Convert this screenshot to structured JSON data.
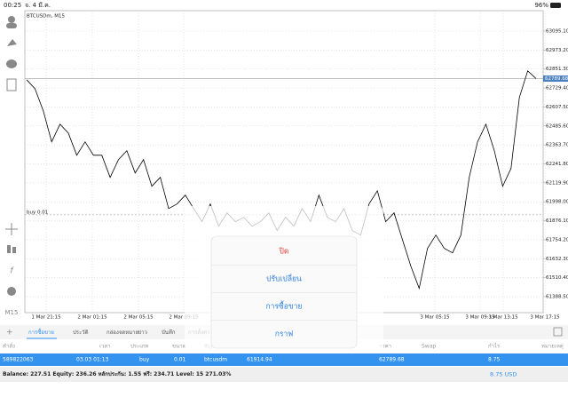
{
  "status_bar": {
    "time": "00:25",
    "date": "จ. 4 มี.ค.",
    "battery": "96%"
  },
  "chart_data": {
    "type": "line",
    "title": "BTCUSDm, M15",
    "timeframe": "M15",
    "current_price": 62789.68,
    "buy_label": "buy 0.01",
    "ylim": [
      61286,
      63226
    ],
    "yticks": [
      {
        "value": 63095.1,
        "label": "63095.10"
      },
      {
        "value": 62973.2,
        "label": "62973.20"
      },
      {
        "value": 62851.3,
        "label": "62851.30"
      },
      {
        "value": 62729.4,
        "label": "62729.40"
      },
      {
        "value": 62607.5,
        "label": "62607.50"
      },
      {
        "value": 62485.6,
        "label": "62485.60"
      },
      {
        "value": 62363.7,
        "label": "62363.70"
      },
      {
        "value": 62241.8,
        "label": "62241.80"
      },
      {
        "value": 62119.9,
        "label": "62119.90"
      },
      {
        "value": 61998,
        "label": "61998.00"
      },
      {
        "value": 61876.1,
        "label": "61876.10"
      },
      {
        "value": 61754.2,
        "label": "61754.20"
      },
      {
        "value": 61632.3,
        "label": "61632.30"
      },
      {
        "value": 61510.4,
        "label": "61510.40"
      },
      {
        "value": 61388.5,
        "label": "61388.50"
      }
    ],
    "xticks": [
      "1 Mar 21:15",
      "2 Mar 01:15",
      "2 Mar 05:15",
      "2 Mar 09:15",
      "3 Mar 05:15",
      "3 Mar 09:15",
      "3 Mar 13:15",
      "3 Mar 17:15"
    ],
    "color": "#000000",
    "grid": true,
    "values": [
      62782,
      62725,
      62582,
      62383,
      62497,
      62440,
      62297,
      62383,
      62297,
      62297,
      62155,
      62269,
      62326,
      62183,
      62269,
      62098,
      62155,
      61955,
      61984,
      62041,
      61955,
      61870,
      61984,
      61841,
      61927,
      61870,
      61898,
      61841,
      61870,
      61927,
      61813,
      61898,
      61841,
      61955,
      61870,
      62041,
      61898,
      61870,
      61955,
      61813,
      61784,
      61984,
      62069,
      61870,
      61927,
      61756,
      61585,
      61442,
      61699,
      61784,
      61699,
      61670,
      61784,
      62155,
      62383,
      62497,
      62326,
      62098,
      62212,
      62668,
      62839,
      62790
    ]
  },
  "popup": {
    "items": [
      "ปิด",
      "ปรับเปลี่ยน",
      "การซื้อขาย",
      "กราฟ"
    ]
  },
  "tabs": [
    "การซื้อขาย",
    "ประวัติ",
    "กล่องจดหมาย",
    "ข่าว",
    "บันทึก",
    "การตั้งค่า"
  ],
  "table": {
    "columns": [
      "คำสั่ง",
      "เวลา",
      "ประเภท",
      "ขนาด",
      "สัญลักษณ์",
      "T/P",
      "ราคา",
      "Swap",
      "กำไร",
      "หมายเหตุ"
    ],
    "row": {
      "order": "589822063",
      "time": "03.03 01:13",
      "type": "buy",
      "size": "0.01",
      "symbol": "btcusdm",
      "open_price": 61914.94,
      "price": 62789.68,
      "profit": "8.75"
    }
  },
  "balance": {
    "summary": "Balance: 227.51 Equity: 236.26 หลักประกัน: 1.55 ฟรี: 234.71 Level: 15 271.03%",
    "profit": "8.75 USD"
  }
}
